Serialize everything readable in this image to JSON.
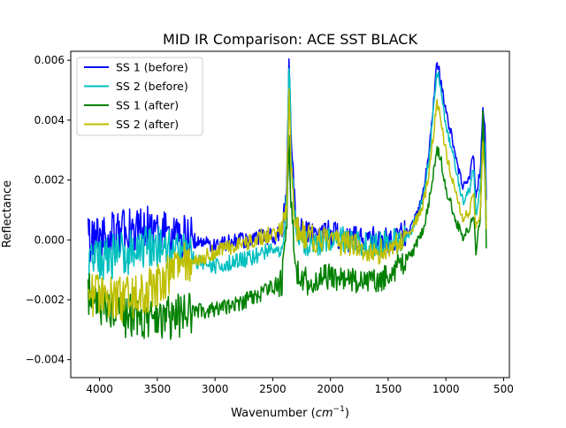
{
  "chart_data": {
    "type": "line",
    "title": "MID IR Comparison: ACE SST BLACK",
    "xlabel": "Wavenumber",
    "xlabel_unit_base": "cm",
    "xlabel_unit_exp": "−1",
    "ylabel": "Reflectance",
    "xlim": [
      4250,
      450
    ],
    "ylim": [
      -0.0046,
      0.0063
    ],
    "x_ticks": [
      4000,
      3500,
      3000,
      2500,
      2000,
      1500,
      1000,
      500
    ],
    "x_tick_labels": [
      "4000",
      "3500",
      "3000",
      "2500",
      "2000",
      "1500",
      "1000",
      "500"
    ],
    "y_ticks": [
      -0.004,
      -0.002,
      0.0,
      0.002,
      0.004,
      0.006
    ],
    "y_tick_labels": [
      "−0.004",
      "−0.002",
      "0.000",
      "0.002",
      "0.004",
      "0.006"
    ],
    "grid": false,
    "legend_position": "top-left",
    "series": [
      {
        "name": "SS 1 (before)",
        "color": "#0000ff",
        "x": [
          4100,
          3950,
          3800,
          3650,
          3500,
          3400,
          3300,
          3200,
          3100,
          3000,
          2900,
          2800,
          2700,
          2600,
          2500,
          2420,
          2380,
          2360,
          2340,
          2300,
          2250,
          2200,
          2100,
          2000,
          1900,
          1800,
          1700,
          1600,
          1500,
          1400,
          1300,
          1200,
          1150,
          1100,
          1080,
          1060,
          1040,
          1000,
          950,
          900,
          850,
          800,
          760,
          740,
          700,
          680,
          660,
          650
        ],
        "y": [
          0.0,
          0.0001,
          0.0003,
          0.0004,
          0.0004,
          0.0002,
          0.0001,
          0.0,
          -0.0001,
          -0.0001,
          -0.0001,
          0.0,
          0.0,
          0.0001,
          0.0001,
          0.0002,
          0.0015,
          0.0058,
          0.0032,
          0.0006,
          0.0004,
          0.0002,
          0.0002,
          0.0002,
          0.0001,
          0.0,
          0.0001,
          0.0,
          0.0,
          0.0001,
          0.0004,
          0.0015,
          0.0028,
          0.0048,
          0.006,
          0.0057,
          0.0052,
          0.0043,
          0.0035,
          0.0025,
          0.0018,
          0.0021,
          0.0028,
          0.0014,
          0.0024,
          0.0045,
          0.0036,
          0.0012
        ]
      },
      {
        "name": "SS 2 (before)",
        "color": "#00bfbf",
        "x": [
          4100,
          3950,
          3800,
          3650,
          3500,
          3400,
          3300,
          3200,
          3100,
          3000,
          2900,
          2800,
          2700,
          2600,
          2500,
          2420,
          2380,
          2360,
          2340,
          2300,
          2250,
          2200,
          2100,
          2000,
          1900,
          1800,
          1700,
          1600,
          1500,
          1400,
          1300,
          1200,
          1150,
          1100,
          1080,
          1060,
          1040,
          1000,
          950,
          900,
          850,
          800,
          760,
          740,
          700,
          680,
          660,
          650
        ],
        "y": [
          -0.0008,
          -0.0006,
          -0.0005,
          -0.0003,
          -0.0002,
          -0.0004,
          -0.0005,
          -0.0006,
          -0.0008,
          -0.0009,
          -0.0008,
          -0.0007,
          -0.0006,
          -0.0005,
          -0.0003,
          -0.0002,
          0.0012,
          0.006,
          0.003,
          0.0002,
          0.0,
          -0.0001,
          -0.0001,
          0.0,
          0.0,
          0.0,
          -0.0001,
          -0.0002,
          -0.0001,
          0.0,
          0.0003,
          0.0013,
          0.0026,
          0.0046,
          0.0056,
          0.0054,
          0.0049,
          0.0038,
          0.0031,
          0.002,
          0.0013,
          0.0016,
          0.0024,
          0.0008,
          0.0018,
          0.004,
          0.003,
          0.0008
        ]
      },
      {
        "name": "SS 1 (after)",
        "color": "#008000",
        "x": [
          4100,
          3950,
          3800,
          3650,
          3500,
          3400,
          3300,
          3200,
          3100,
          3000,
          2900,
          2800,
          2700,
          2600,
          2500,
          2420,
          2380,
          2360,
          2340,
          2300,
          2250,
          2200,
          2100,
          2000,
          1900,
          1800,
          1700,
          1600,
          1500,
          1400,
          1300,
          1200,
          1150,
          1100,
          1080,
          1060,
          1040,
          1000,
          950,
          900,
          850,
          800,
          760,
          740,
          700,
          680,
          660,
          650
        ],
        "y": [
          -0.0018,
          -0.0022,
          -0.0025,
          -0.0026,
          -0.0026,
          -0.0026,
          -0.0025,
          -0.0024,
          -0.0024,
          -0.0023,
          -0.0022,
          -0.0021,
          -0.002,
          -0.0018,
          -0.0016,
          -0.0014,
          0.0005,
          0.0032,
          0.0012,
          -0.001,
          -0.0012,
          -0.0014,
          -0.0013,
          -0.0012,
          -0.0013,
          -0.0014,
          -0.0015,
          -0.0014,
          -0.0012,
          -0.0008,
          -0.0005,
          0.0003,
          0.0012,
          0.0024,
          0.003,
          0.0029,
          0.0026,
          0.0017,
          0.0011,
          0.0005,
          0.0001,
          0.0004,
          0.0009,
          -0.0004,
          0.0008,
          0.0042,
          0.002,
          -0.0002
        ]
      },
      {
        "name": "SS 2 (after)",
        "color": "#bfbf00",
        "x": [
          4100,
          3950,
          3800,
          3650,
          3500,
          3400,
          3300,
          3200,
          3100,
          3000,
          2900,
          2800,
          2700,
          2600,
          2500,
          2420,
          2380,
          2360,
          2340,
          2300,
          2250,
          2200,
          2100,
          2000,
          1900,
          1800,
          1700,
          1600,
          1500,
          1400,
          1300,
          1200,
          1150,
          1100,
          1080,
          1060,
          1040,
          1000,
          950,
          900,
          850,
          800,
          760,
          740,
          700,
          680,
          660,
          650
        ],
        "y": [
          -0.0018,
          -0.0019,
          -0.002,
          -0.0018,
          -0.0015,
          -0.0012,
          -0.0009,
          -0.0007,
          -0.0006,
          -0.0004,
          -0.0003,
          -0.0002,
          -0.0001,
          0.0001,
          0.0002,
          0.0003,
          0.0012,
          0.0047,
          0.0022,
          0.0004,
          0.0002,
          0.0001,
          0.0,
          0.0,
          -0.0001,
          -0.0002,
          -0.0003,
          -0.0004,
          -0.0002,
          0.0,
          0.0003,
          0.0011,
          0.0022,
          0.0038,
          0.0046,
          0.0044,
          0.0039,
          0.0029,
          0.0021,
          0.0013,
          0.0007,
          0.0009,
          0.0015,
          0.0003,
          0.001,
          0.0032,
          0.0022,
          0.0004
        ]
      }
    ]
  }
}
